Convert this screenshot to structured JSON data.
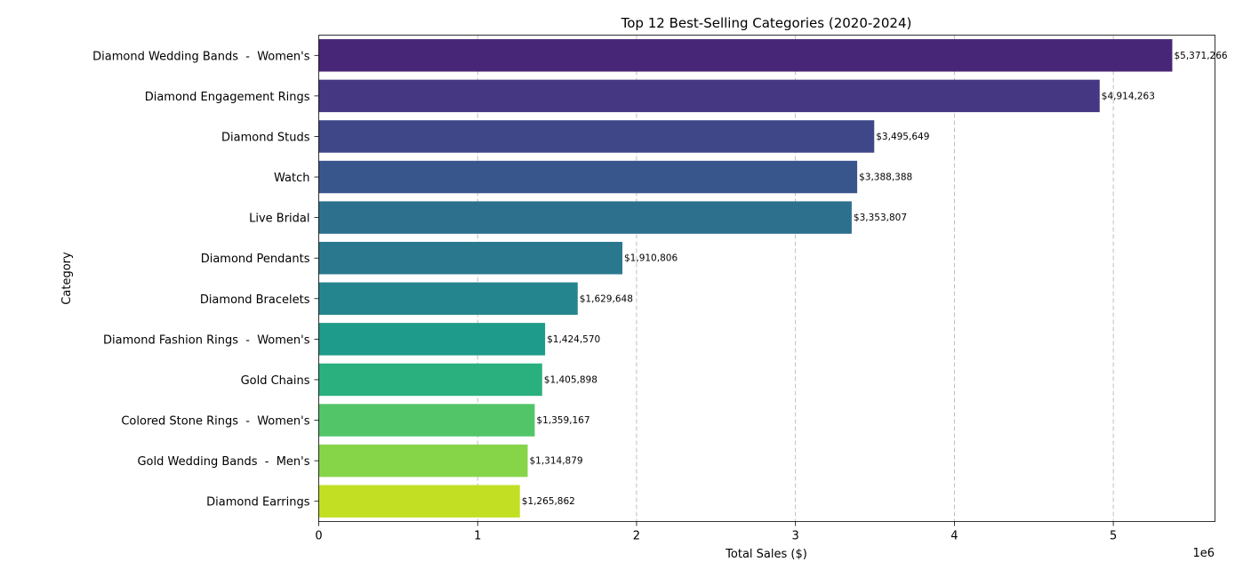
{
  "chart_data": {
    "type": "bar",
    "orientation": "horizontal",
    "title": "Top 12 Best-Selling Categories (2020-2024)",
    "xlabel": "Total Sales ($)",
    "ylabel": "Category",
    "x_offset_label": "1e6",
    "xlim": [
      0,
      5640000
    ],
    "x_ticks": [
      0,
      1,
      2,
      3,
      4,
      5
    ],
    "x_tick_scale": 1000000,
    "grid": "x-dashed",
    "categories": [
      "Diamond Wedding Bands  -  Women's",
      "Diamond Engagement Rings",
      "Diamond Studs",
      "Watch",
      "Live Bridal",
      "Diamond Pendants",
      "Diamond Bracelets",
      "Diamond Fashion Rings  -  Women's",
      "Gold Chains",
      "Colored Stone Rings  -  Women's",
      "Gold Wedding Bands  -  Men's",
      "Diamond Earrings"
    ],
    "values": [
      5371266,
      4914263,
      3495649,
      3388388,
      3353807,
      1910806,
      1629648,
      1424570,
      1405898,
      1359167,
      1314879,
      1265862
    ],
    "value_labels": [
      "$5,371,266",
      "$4,914,263",
      "$3,495,649",
      "$3,388,388",
      "$3,353,807",
      "$1,910,806",
      "$1,629,648",
      "$1,424,570",
      "$1,405,898",
      "$1,359,167",
      "$1,314,879",
      "$1,265,862"
    ],
    "colors": [
      "#482677",
      "#453781",
      "#3f4788",
      "#39568c",
      "#2d708e",
      "#2a788e",
      "#25858e",
      "#1e9b8a",
      "#2ab07f",
      "#52c569",
      "#86d549",
      "#c2df23"
    ]
  }
}
